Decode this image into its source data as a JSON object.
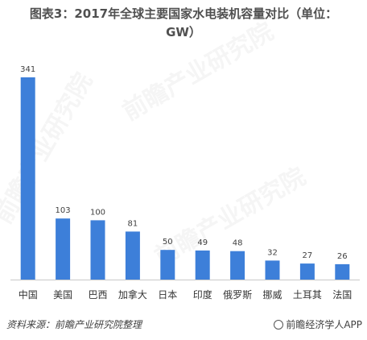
{
  "title": {
    "line1": "图表3：2017年全球主要国家水电装机容量对比（单位：",
    "line2": "GW）"
  },
  "footer": {
    "source": "资料来源：前瞻产业研究院整理",
    "brand": "前瞻经济学人APP"
  },
  "watermark": {
    "text": "前瞻产业研究院"
  },
  "colors": {
    "bar": "#3d7fd9",
    "axis": "#c9c9c9"
  },
  "chart_data": {
    "type": "bar",
    "categories": [
      "中国",
      "美国",
      "巴西",
      "加拿大",
      "日本",
      "印度",
      "俄罗斯",
      "挪威",
      "土耳其",
      "法国"
    ],
    "values": [
      341,
      103,
      100,
      81,
      50,
      49,
      48,
      32,
      27,
      26
    ],
    "title": "图表3：2017年全球主要国家水电装机容量对比（单位：GW）",
    "xlabel": "",
    "ylabel": "",
    "ylim": [
      0,
      341
    ],
    "grid": false,
    "data_labels": true
  }
}
